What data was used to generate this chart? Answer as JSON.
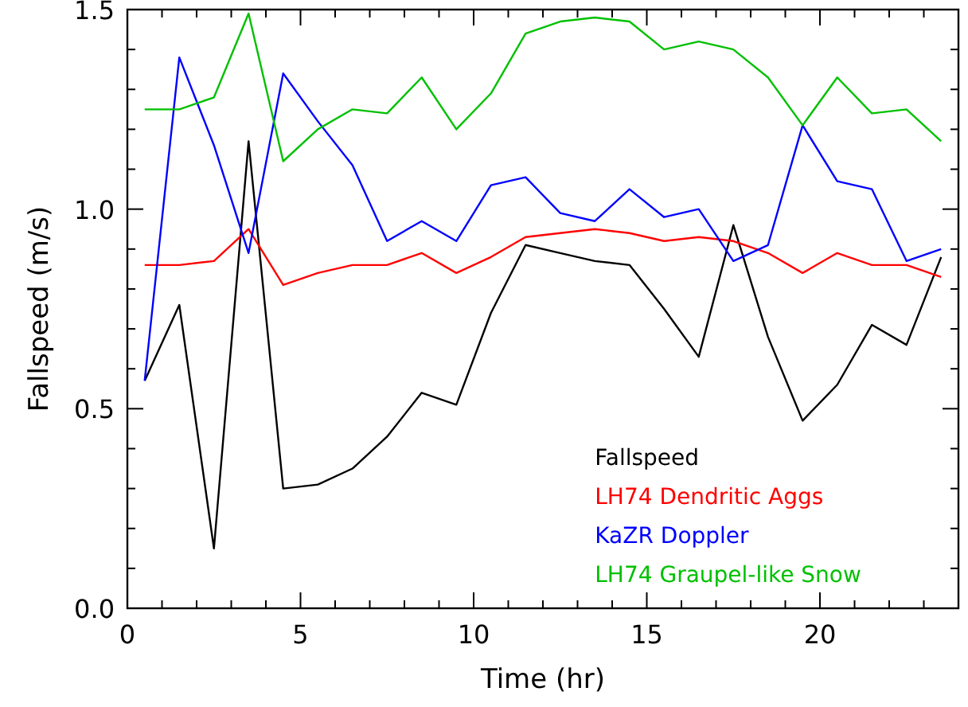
{
  "chart_data": {
    "type": "line",
    "xlabel": "Time (hr)",
    "ylabel": "Fallspeed (m/s)",
    "x": [
      0.5,
      1.5,
      2.5,
      3.5,
      4.5,
      5.5,
      6.5,
      7.5,
      8.5,
      9.5,
      10.5,
      11.5,
      12.5,
      13.5,
      14.5,
      15.5,
      16.5,
      17.5,
      18.5,
      19.5,
      20.5,
      21.5,
      22.5,
      23.5
    ],
    "xlim": [
      0,
      24
    ],
    "ylim": [
      0,
      1.5
    ],
    "xticks": [
      0,
      {
        "value": 1,
        "label": null
      },
      {
        "value": 2,
        "label": null
      },
      {
        "value": 3,
        "label": null
      },
      {
        "value": 4,
        "label": null
      },
      5,
      {
        "value": 6,
        "label": null
      },
      {
        "value": 7,
        "label": null
      },
      {
        "value": 8,
        "label": null
      },
      {
        "value": 9,
        "label": null
      },
      10,
      {
        "value": 11,
        "label": null
      },
      {
        "value": 12,
        "label": null
      },
      {
        "value": 13,
        "label": null
      },
      {
        "value": 14,
        "label": null
      },
      15,
      {
        "value": 16,
        "label": null
      },
      {
        "value": 17,
        "label": null
      },
      {
        "value": 18,
        "label": null
      },
      {
        "value": 19,
        "label": null
      },
      20,
      {
        "value": 21,
        "label": null
      },
      {
        "value": 22,
        "label": null
      },
      {
        "value": 23,
        "label": null
      }
    ],
    "yticks": [
      {
        "value": 0,
        "label": "0.0"
      },
      {
        "value": 0.1,
        "label": null
      },
      {
        "value": 0.2,
        "label": null
      },
      {
        "value": 0.3,
        "label": null
      },
      {
        "value": 0.4,
        "label": null
      },
      {
        "value": 0.5,
        "label": "0.5"
      },
      {
        "value": 0.6,
        "label": null
      },
      {
        "value": 0.7,
        "label": null
      },
      {
        "value": 0.8,
        "label": null
      },
      {
        "value": 0.9,
        "label": null
      },
      {
        "value": 1,
        "label": "1.0"
      },
      {
        "value": 1.1,
        "label": null
      },
      {
        "value": 1.2,
        "label": null
      },
      {
        "value": 1.3,
        "label": null
      },
      {
        "value": 1.4,
        "label": null
      },
      {
        "value": 1.5,
        "label": "1.5"
      }
    ],
    "legend": "bottom right",
    "series": [
      {
        "name": "Fallspeed",
        "color": "#000000",
        "values": [
          0.57,
          0.76,
          0.15,
          1.17,
          0.3,
          0.31,
          0.35,
          0.43,
          0.54,
          0.51,
          0.74,
          0.91,
          0.89,
          0.87,
          0.86,
          0.75,
          0.63,
          0.96,
          0.68,
          0.47,
          0.56,
          0.71,
          0.66,
          0.88
        ]
      },
      {
        "name": "LH74 Dendritic Aggs",
        "color": "#ff0000",
        "values": [
          0.86,
          0.86,
          0.87,
          0.95,
          0.81,
          0.84,
          0.86,
          0.86,
          0.89,
          0.84,
          0.88,
          0.93,
          0.94,
          0.95,
          0.94,
          0.92,
          0.93,
          0.92,
          0.89,
          0.84,
          0.89,
          0.86,
          0.86,
          0.83
        ]
      },
      {
        "name": "KaZR Doppler",
        "color": "#0000ff",
        "values": [
          0.57,
          1.38,
          1.16,
          0.89,
          1.34,
          1.22,
          1.11,
          0.92,
          0.97,
          0.92,
          1.06,
          1.08,
          0.99,
          0.97,
          1.05,
          0.98,
          1.0,
          0.87,
          0.91,
          1.21,
          1.07,
          1.05,
          0.87,
          0.9
        ]
      },
      {
        "name": "LH74 Graupel-like Snow",
        "color": "#00c000",
        "values": [
          1.25,
          1.25,
          1.28,
          1.49,
          1.12,
          1.2,
          1.25,
          1.24,
          1.33,
          1.2,
          1.29,
          1.44,
          1.47,
          1.48,
          1.47,
          1.4,
          1.42,
          1.4,
          1.33,
          1.21,
          1.33,
          1.24,
          1.25,
          1.17
        ]
      }
    ]
  }
}
